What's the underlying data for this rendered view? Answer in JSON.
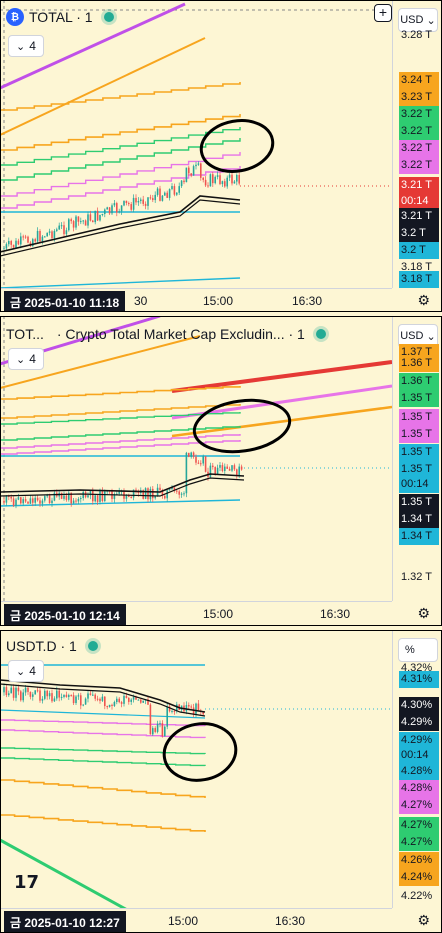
{
  "colors": {
    "bg": "#fdf6d4",
    "orange": "#f7a51e",
    "green": "#2ecc71",
    "pink": "#e774e8",
    "purple": "#c050e8",
    "cyan": "#1fb6d8",
    "red": "#e53935",
    "black": "#131722",
    "ema": "#111111"
  },
  "panels": [
    {
      "legend": {
        "symbol": "TOTAL · 1",
        "title": ""
      },
      "collapse_count": "4",
      "currency": "USD",
      "price_labels": [
        {
          "text": "3.28 T",
          "bg": "",
          "fg": "#131722",
          "top": 27
        },
        {
          "text": "3.24 T",
          "bg": "#f7a51e",
          "fg": "#131722",
          "top": 72
        },
        {
          "text": "3.23 T",
          "bg": "#f7a51e",
          "fg": "#131722",
          "top": 89
        },
        {
          "text": "3.22 T",
          "bg": "#2ecc71",
          "fg": "#131722",
          "top": 106
        },
        {
          "text": "3.22 T",
          "bg": "#2ecc71",
          "fg": "#131722",
          "top": 123
        },
        {
          "text": "3.22 T",
          "bg": "#e774e8",
          "fg": "#131722",
          "top": 140
        },
        {
          "text": "3.22 T",
          "bg": "#e774e8",
          "fg": "#131722",
          "top": 157
        },
        {
          "text": "3.21 T",
          "bg": "#e53935",
          "fg": "#ffffff",
          "top": 177
        },
        {
          "text": "00:14",
          "bg": "#e53935",
          "fg": "#ffffff",
          "top": 193
        },
        {
          "text": "3.21 T",
          "bg": "#131722",
          "fg": "#ffffff",
          "top": 208
        },
        {
          "text": "3.2 T",
          "bg": "#131722",
          "fg": "#ffffff",
          "top": 225
        },
        {
          "text": "3.2 T",
          "bg": "#1fb6d8",
          "fg": "#131722",
          "top": 242
        },
        {
          "text": "3.18 T",
          "bg": "",
          "fg": "#131722",
          "top": 259
        },
        {
          "text": "3.18 T",
          "bg": "#1fb6d8",
          "fg": "#131722",
          "top": 271
        }
      ],
      "date_badge": "금 2025-01-10  11:18",
      "time_ticks": [
        {
          "text": "30",
          "left": 134
        },
        {
          "text": "15:00",
          "left": 203
        },
        {
          "text": "16:30",
          "left": 292
        }
      ]
    },
    {
      "legend": {
        "symbol": "TOT...",
        "title": "· Crypto Total Market Cap Excludin... · 1"
      },
      "collapse_count": "4",
      "currency": "USD",
      "price_labels": [
        {
          "text": "1.37 T",
          "bg": "#f7a51e",
          "fg": "#131722",
          "top": 28
        },
        {
          "text": "1.36 T",
          "bg": "#f7a51e",
          "fg": "#131722",
          "top": 39
        },
        {
          "text": "1.36 T",
          "bg": "#2ecc71",
          "fg": "#131722",
          "top": 57
        },
        {
          "text": "1.35 T",
          "bg": "#2ecc71",
          "fg": "#131722",
          "top": 74
        },
        {
          "text": "1.35 T",
          "bg": "#e774e8",
          "fg": "#131722",
          "top": 93
        },
        {
          "text": "1.35 T",
          "bg": "#e774e8",
          "fg": "#131722",
          "top": 110
        },
        {
          "text": "1.35 T",
          "bg": "#1fb6d8",
          "fg": "#131722",
          "top": 128
        },
        {
          "text": "1.35 T",
          "bg": "#1fb6d8",
          "fg": "#131722",
          "top": 145
        },
        {
          "text": "00:14",
          "bg": "#1fb6d8",
          "fg": "#131722",
          "top": 160
        },
        {
          "text": "1.35 T",
          "bg": "#131722",
          "fg": "#ffffff",
          "top": 178
        },
        {
          "text": "1.34 T",
          "bg": "#131722",
          "fg": "#ffffff",
          "top": 195
        },
        {
          "text": "1.34 T",
          "bg": "#1fb6d8",
          "fg": "#131722",
          "top": 212
        },
        {
          "text": "1.32 T",
          "bg": "",
          "fg": "#131722",
          "top": 253
        }
      ],
      "date_badge": "금 2025-01-10  12:14",
      "time_ticks": [
        {
          "text": "15:00",
          "left": 203
        },
        {
          "text": "16:30",
          "left": 320
        }
      ]
    },
    {
      "legend": {
        "symbol": "USDT.D · 1",
        "title": ""
      },
      "collapse_count": "4",
      "currency": "%",
      "price_labels": [
        {
          "text": "4.32%",
          "bg": "",
          "fg": "#131722",
          "top": 30
        },
        {
          "text": "4.31%",
          "bg": "#1fb6d8",
          "fg": "#131722",
          "top": 41
        },
        {
          "text": "4.30%",
          "bg": "#131722",
          "fg": "#ffffff",
          "top": 67
        },
        {
          "text": "4.29%",
          "bg": "#131722",
          "fg": "#ffffff",
          "top": 84
        },
        {
          "text": "4.29%",
          "bg": "#1fb6d8",
          "fg": "#131722",
          "top": 102
        },
        {
          "text": "00:14",
          "bg": "#1fb6d8",
          "fg": "#131722",
          "top": 117
        },
        {
          "text": "4.28%",
          "bg": "#1fb6d8",
          "fg": "#131722",
          "top": 133
        },
        {
          "text": "4.28%",
          "bg": "#e774e8",
          "fg": "#131722",
          "top": 150
        },
        {
          "text": "4.27%",
          "bg": "#e774e8",
          "fg": "#131722",
          "top": 167
        },
        {
          "text": "4.27%",
          "bg": "#2ecc71",
          "fg": "#131722",
          "top": 187
        },
        {
          "text": "4.27%",
          "bg": "#2ecc71",
          "fg": "#131722",
          "top": 204
        },
        {
          "text": "4.26%",
          "bg": "#f7a51e",
          "fg": "#131722",
          "top": 222
        },
        {
          "text": "4.24%",
          "bg": "#f7a51e",
          "fg": "#131722",
          "top": 239
        },
        {
          "text": "4.22%",
          "bg": "",
          "fg": "#131722",
          "top": 258
        }
      ],
      "date_badge": "금 2025-01-10  12:27",
      "time_ticks": [
        {
          "text": "15:00",
          "left": 168
        },
        {
          "text": "16:30",
          "left": 275
        }
      ]
    }
  ],
  "logo": "17",
  "gear_glyph": "⚙",
  "plus_glyph": "+",
  "chevron_glyph": "⌄"
}
